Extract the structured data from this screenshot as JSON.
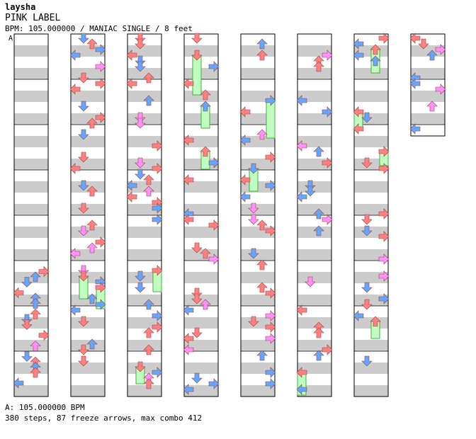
{
  "artist": "laysha",
  "title": "PINK LABEL",
  "meta": "BPM: 105.000000 / MANIAC SINGLE / 8 feet",
  "bpm_marker": "A",
  "footer": {
    "bpm_line": "A: 105.000000 BPM",
    "stats_line": "380 steps, 87 freeze arrows, max combo 412"
  },
  "colors": {
    "quarter": "#ff8080",
    "eighth": "#60a8ff",
    "sixteenth": "#ff90ff",
    "freeze": "#c0ffc0",
    "freeze_edge": "#40b040",
    "stripe": "#cccccc"
  }
}
